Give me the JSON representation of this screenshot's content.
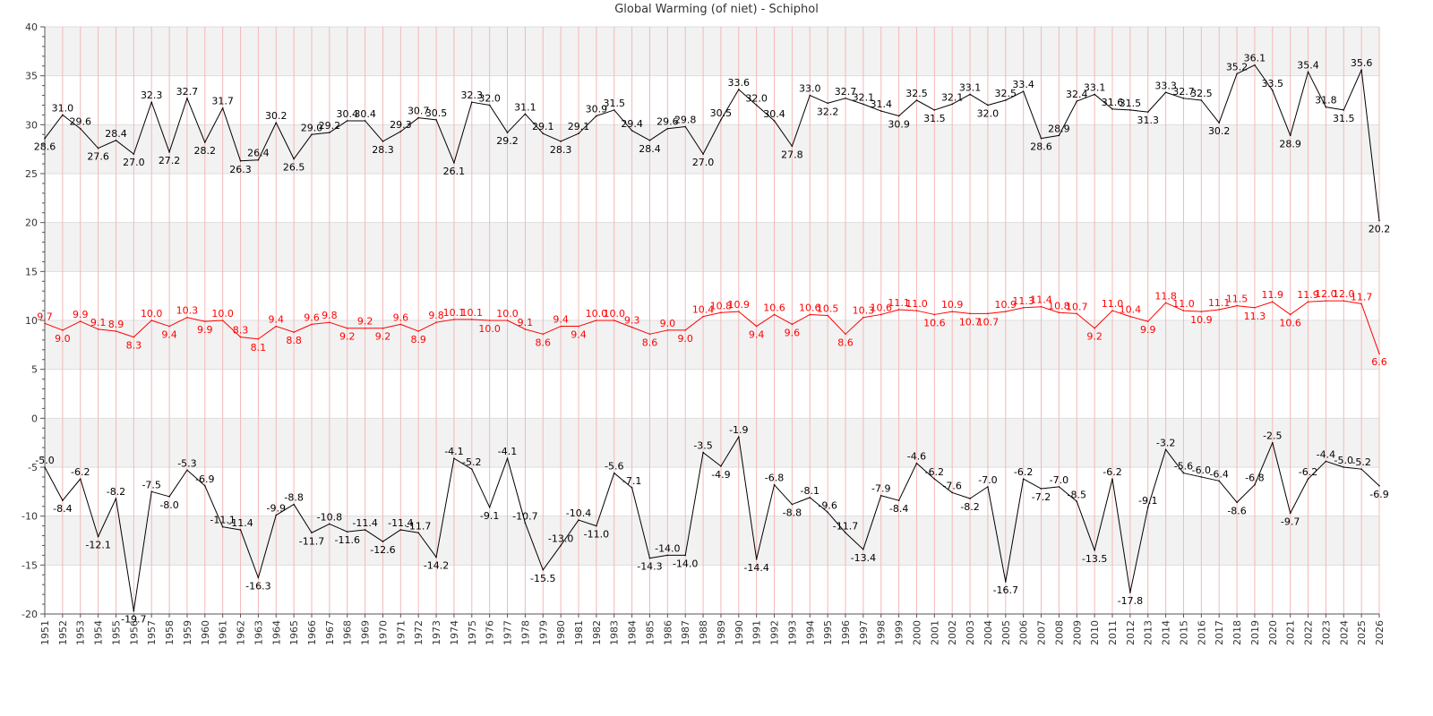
{
  "chart_data": {
    "type": "line",
    "title": "Global Warming (of niet) - Schiphol",
    "xlabel": "",
    "ylabel": "",
    "ylim": [
      -20,
      40
    ],
    "yticks": [
      -20,
      -15,
      -10,
      -5,
      0,
      5,
      10,
      15,
      20,
      25,
      30,
      35,
      40
    ],
    "grid": true,
    "x": [
      "1951",
      "1952",
      "1953",
      "1954",
      "1955",
      "1956",
      "1957",
      "1958",
      "1959",
      "1960",
      "1961",
      "1962",
      "1963",
      "1964",
      "1965",
      "1966",
      "1967",
      "1968",
      "1969",
      "1970",
      "1971",
      "1972",
      "1973",
      "1974",
      "1975",
      "1976",
      "1977",
      "1978",
      "1979",
      "1980",
      "1981",
      "1982",
      "1983",
      "1984",
      "1985",
      "1986",
      "1987",
      "1988",
      "1989",
      "1990",
      "1991",
      "1992",
      "1993",
      "1994",
      "1995",
      "1996",
      "1997",
      "1998",
      "1999",
      "2000",
      "2001",
      "2002",
      "2003",
      "2004",
      "2005",
      "2006",
      "2007",
      "2008",
      "2009",
      "2010",
      "2011",
      "2012",
      "2013",
      "2014",
      "2015",
      "2016",
      "2017",
      "2018",
      "2019",
      "2020",
      "2021",
      "2022",
      "2023",
      "2024",
      "2025",
      "2026"
    ],
    "series": [
      {
        "color": "#000000",
        "values": [
          28.6,
          31.0,
          29.6,
          27.6,
          28.4,
          27.0,
          32.3,
          27.2,
          32.7,
          28.2,
          31.7,
          26.3,
          26.4,
          30.2,
          26.5,
          29.0,
          29.2,
          30.4,
          30.4,
          28.3,
          29.3,
          30.7,
          30.5,
          26.1,
          32.3,
          32.0,
          29.2,
          31.1,
          29.1,
          28.3,
          29.1,
          30.9,
          31.5,
          29.4,
          28.4,
          29.6,
          29.8,
          27.0,
          30.5,
          33.6,
          32.0,
          30.4,
          27.8,
          33.0,
          32.2,
          32.7,
          32.1,
          31.4,
          30.9,
          32.5,
          31.5,
          32.1,
          33.1,
          32.0,
          32.5,
          33.4,
          28.6,
          28.9,
          32.4,
          33.1,
          31.6,
          31.5,
          31.3,
          33.3,
          32.7,
          32.5,
          30.2,
          35.2,
          36.1,
          33.5,
          28.9,
          35.4,
          31.8,
          31.5,
          35.6,
          20.2
        ]
      },
      {
        "color": "#ff0000",
        "values": [
          9.7,
          9.0,
          9.9,
          9.1,
          8.9,
          8.3,
          10.0,
          9.4,
          10.3,
          9.9,
          10.0,
          8.3,
          8.1,
          9.4,
          8.8,
          9.6,
          9.8,
          9.2,
          9.2,
          9.2,
          9.6,
          8.9,
          9.8,
          10.1,
          10.1,
          10.0,
          10.0,
          9.1,
          8.6,
          9.4,
          9.4,
          10.0,
          10.0,
          9.3,
          8.6,
          9.0,
          9.0,
          10.4,
          10.8,
          10.9,
          9.4,
          10.6,
          9.6,
          10.6,
          10.5,
          8.6,
          10.3,
          10.6,
          11.1,
          11.0,
          10.6,
          10.9,
          10.7,
          10.7,
          10.9,
          11.3,
          11.4,
          10.8,
          10.7,
          9.2,
          11.0,
          10.4,
          9.9,
          11.8,
          11.0,
          10.9,
          11.1,
          11.5,
          11.3,
          11.9,
          10.6,
          11.9,
          12.0,
          12.0,
          11.7,
          6.6
        ]
      },
      {
        "color": "#000000",
        "values": [
          -5.0,
          -8.4,
          -6.2,
          -12.1,
          -8.2,
          -19.7,
          -7.5,
          -8.0,
          -5.3,
          -6.9,
          -11.1,
          -11.4,
          -16.3,
          -9.9,
          -8.8,
          -11.7,
          -10.8,
          -11.6,
          -11.4,
          -12.6,
          -11.4,
          -11.7,
          -14.2,
          -4.1,
          -5.2,
          -9.1,
          -4.1,
          -10.7,
          -15.5,
          -13.0,
          -10.4,
          -11.0,
          -5.6,
          -7.1,
          -14.3,
          -14.0,
          -14.0,
          -3.5,
          -4.9,
          -1.9,
          -14.4,
          -6.8,
          -8.8,
          -8.1,
          -9.6,
          -11.7,
          -13.4,
          -7.9,
          -8.4,
          -4.6,
          -6.2,
          -7.6,
          -8.2,
          -7.0,
          -16.7,
          -6.2,
          -7.2,
          -7.0,
          -8.5,
          -13.5,
          -6.2,
          -17.8,
          -9.1,
          -3.2,
          -5.6,
          -6.0,
          -6.4,
          -8.6,
          -6.8,
          -2.5,
          -9.7,
          -6.2,
          -4.4,
          -5.0,
          -5.2,
          -6.9
        ]
      }
    ]
  }
}
